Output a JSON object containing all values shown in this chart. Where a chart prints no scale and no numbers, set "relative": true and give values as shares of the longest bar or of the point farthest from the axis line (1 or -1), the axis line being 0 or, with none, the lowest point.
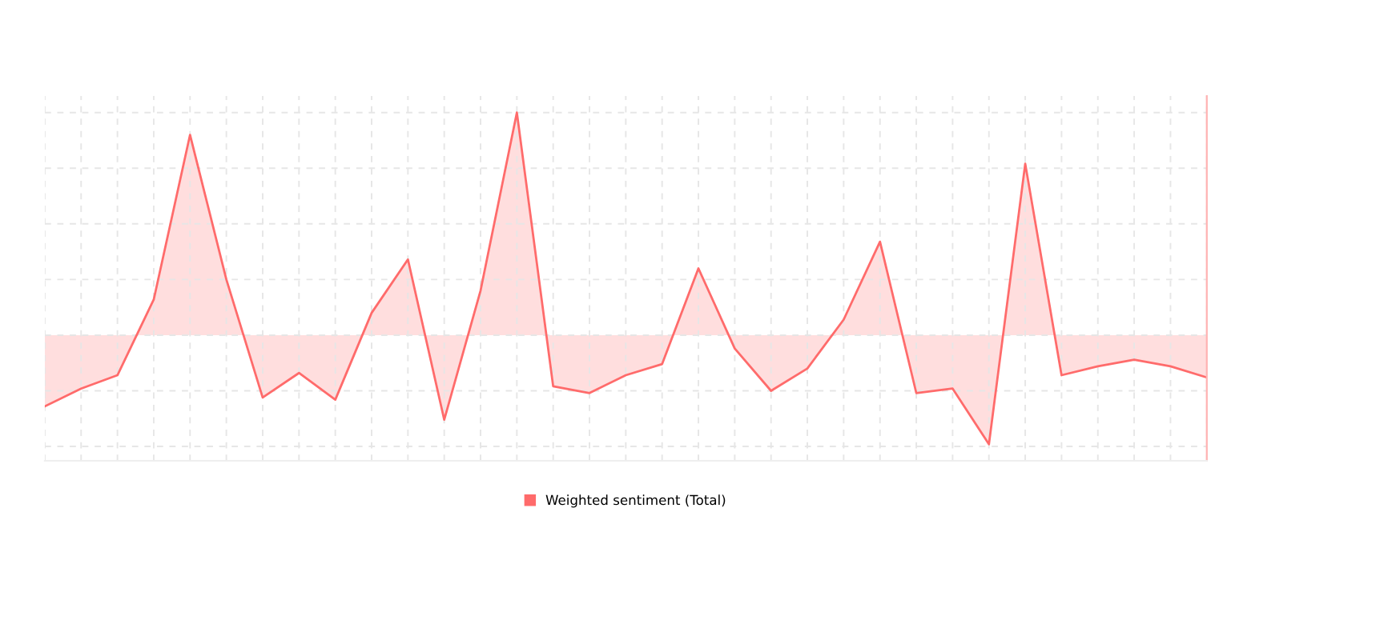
{
  "chart_data": {
    "type": "area",
    "relative": true,
    "grid": true,
    "legend": "bottom",
    "categories": [
      null,
      null,
      null,
      null,
      null,
      null,
      null,
      null,
      null,
      null,
      null,
      null,
      null,
      null,
      null,
      null,
      null,
      null,
      null,
      null,
      null,
      null,
      null,
      null,
      null,
      null,
      null,
      null,
      null,
      null,
      null,
      null,
      null
    ],
    "series": [
      {
        "name": "Weighted sentiment (Total)",
        "color": "#ff6b6b",
        "values": [
          -0.32,
          -0.24,
          -0.18,
          0.16,
          0.9,
          0.25,
          -0.28,
          -0.17,
          -0.29,
          0.1,
          0.34,
          -0.38,
          0.2,
          1.0,
          -0.23,
          -0.26,
          -0.18,
          -0.13,
          0.3,
          -0.06,
          -0.25,
          -0.15,
          0.07,
          0.42,
          -0.26,
          -0.24,
          -0.49,
          0.77,
          -0.18,
          -0.14,
          -0.11,
          -0.14,
          -0.19
        ]
      }
    ]
  }
}
